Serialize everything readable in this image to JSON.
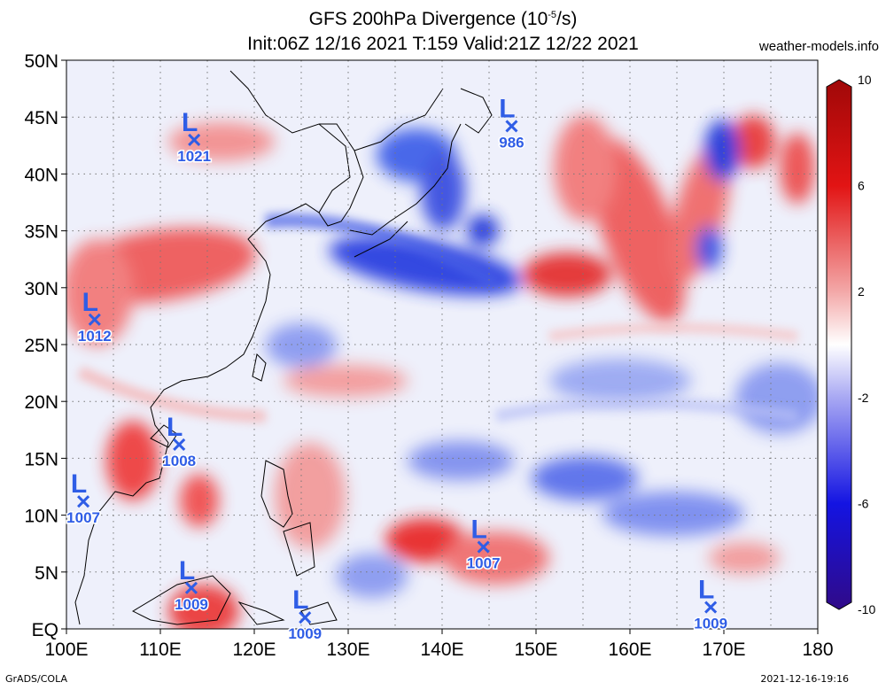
{
  "title": {
    "prefix": "GFS 200hPa Divergence (10",
    "sup": "-5",
    "suffix": "/s)",
    "line2": "Init:06Z 12/16 2021 T:159 Valid:21Z 12/22 2021"
  },
  "site": "weather-models.info",
  "footer": {
    "left": "GrADS/COLA",
    "right": "2021-12-16-19:16"
  },
  "map": {
    "lat_labels": [
      "50N",
      "45N",
      "40N",
      "35N",
      "30N",
      "25N",
      "20N",
      "15N",
      "10N",
      "5N",
      "EQ"
    ],
    "lon_labels": [
      "100E",
      "110E",
      "120E",
      "130E",
      "140E",
      "150E",
      "160E",
      "170E",
      "180"
    ],
    "lat_range": [
      0,
      50
    ],
    "lon_range": [
      100,
      180
    ],
    "grid_interval_deg": 5,
    "gridlines": true
  },
  "colorbar": {
    "labels": [
      "10",
      "6",
      "2",
      "-2",
      "-6",
      "-10"
    ],
    "range": [
      -10,
      10
    ],
    "colors": {
      "high": "#b01010",
      "mid": "#ffffff",
      "low": "#2a0a8a"
    }
  },
  "lows": [
    {
      "letter": "L",
      "pressure": "1021",
      "lon": 113.6,
      "lat": 43.0
    },
    {
      "letter": "L",
      "pressure": "986",
      "lon": 147.4,
      "lat": 44.2
    },
    {
      "letter": "L",
      "pressure": "1012",
      "lon": 103.0,
      "lat": 27.2
    },
    {
      "letter": "L",
      "pressure": "1008",
      "lon": 112.0,
      "lat": 16.2
    },
    {
      "letter": "L",
      "pressure": "1007",
      "lon": 101.8,
      "lat": 11.2
    },
    {
      "letter": "L",
      "pressure": "1007",
      "lon": 144.4,
      "lat": 7.2
    },
    {
      "letter": "L",
      "pressure": "1009",
      "lon": 113.3,
      "lat": 3.6
    },
    {
      "letter": "L",
      "pressure": "1009",
      "lon": 125.4,
      "lat": 1.0
    },
    {
      "letter": "L",
      "pressure": "1009",
      "lon": 168.6,
      "lat": 1.9
    }
  ]
}
